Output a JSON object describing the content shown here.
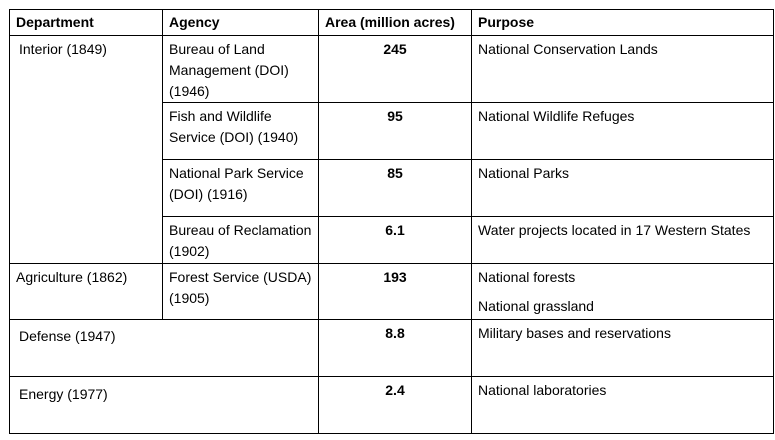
{
  "headers": {
    "department": "Department",
    "agency": "Agency",
    "area": "Area (million acres)",
    "purpose": "Purpose"
  },
  "rows": {
    "interior": {
      "department": "Interior (1849)",
      "agencies": [
        {
          "agency": "Bureau of Land Management (DOI) (1946)",
          "area": "245",
          "purpose": "National Conservation Lands"
        },
        {
          "agency": "Fish and Wildlife Service (DOI) (1940)",
          "area": "95",
          "purpose": "National Wildlife Refuges"
        },
        {
          "agency": "National Park Service (DOI) (1916)",
          "area": "85",
          "purpose": "National Parks"
        },
        {
          "agency": "Bureau of Reclamation (1902)",
          "area": "6.1",
          "purpose": "Water projects located in 17 Western States"
        }
      ]
    },
    "agriculture": {
      "department": "Agriculture (1862)",
      "agency": "Forest Service (USDA) (1905)",
      "area": "193",
      "purpose": [
        "National forests",
        "National grassland"
      ]
    },
    "defense": {
      "department": "Defense (1947)",
      "area": "8.8",
      "purpose": "Military bases and reservations"
    },
    "energy": {
      "department": "Energy (1977)",
      "area": "2.4",
      "purpose": "National laboratories"
    }
  }
}
